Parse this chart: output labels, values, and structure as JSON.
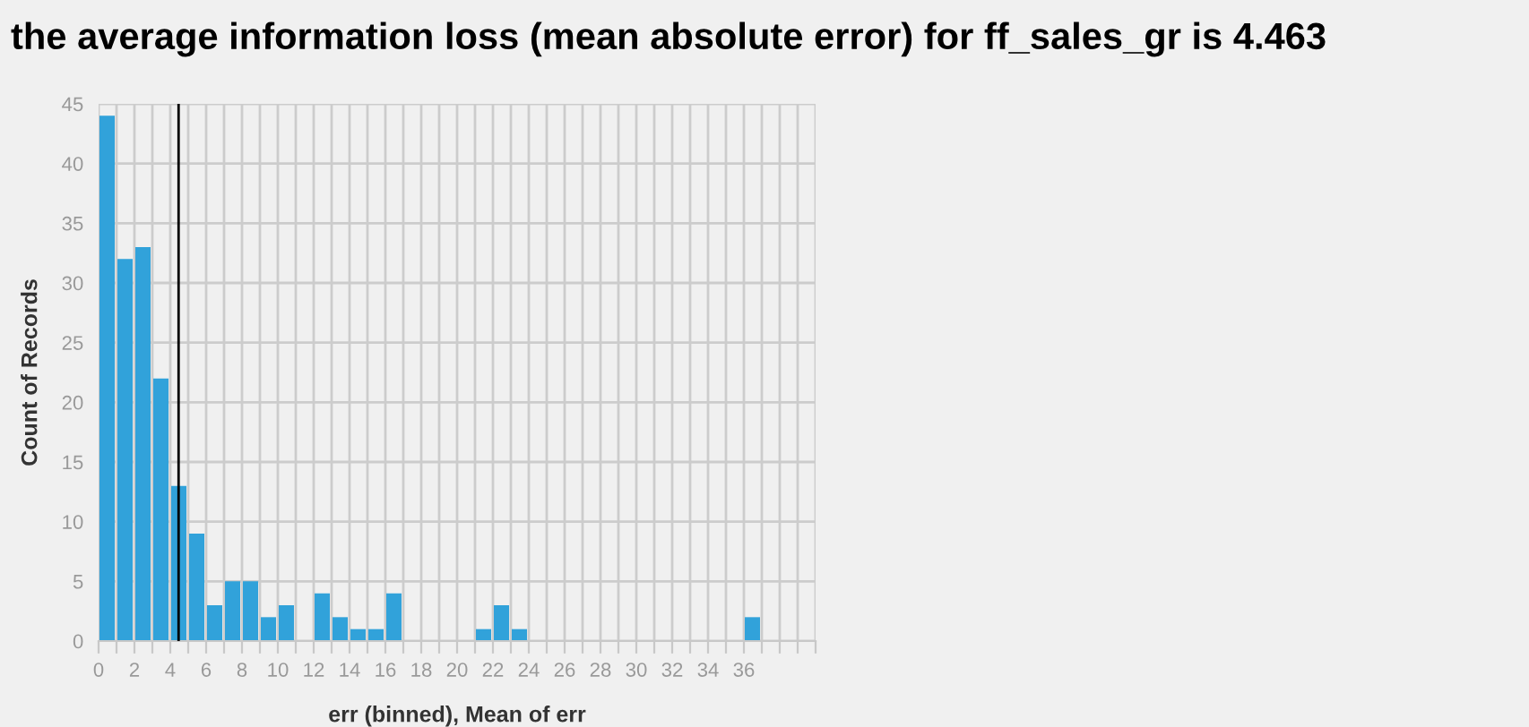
{
  "chart_data": {
    "type": "histogram",
    "title": "the average information loss (mean absolute error) for ff_sales_gr is 4.463",
    "xlabel": "err (binned), Mean of err",
    "ylabel": "Count of Records",
    "bins": [
      0,
      1,
      2,
      3,
      4,
      5,
      6,
      7,
      8,
      9,
      10,
      11,
      12,
      13,
      14,
      15,
      16,
      17,
      18,
      19,
      20,
      21,
      22,
      23,
      24,
      25,
      26,
      27,
      28,
      29,
      30,
      31,
      32,
      33,
      34,
      35,
      36,
      37
    ],
    "values": [
      44,
      32,
      33,
      22,
      13,
      9,
      3,
      5,
      5,
      2,
      3,
      0,
      4,
      2,
      1,
      1,
      4,
      0,
      0,
      0,
      0,
      1,
      3,
      1,
      0,
      0,
      0,
      0,
      0,
      0,
      0,
      0,
      0,
      0,
      0,
      0,
      2
    ],
    "color": "#31a2da",
    "xlim": [
      0,
      40
    ],
    "xticks": [
      0,
      {
        "value": 1,
        "label": null
      },
      2,
      {
        "value": 3,
        "label": null
      },
      4,
      {
        "value": 5,
        "label": null
      },
      6,
      {
        "value": 7,
        "label": null
      },
      8,
      {
        "value": 9,
        "label": null
      },
      10,
      {
        "value": 11,
        "label": null
      },
      12,
      {
        "value": 13,
        "label": null
      },
      14,
      {
        "value": 15,
        "label": null
      },
      16,
      {
        "value": 17,
        "label": null
      },
      18,
      {
        "value": 19,
        "label": null
      },
      20,
      {
        "value": 21,
        "label": null
      },
      22,
      {
        "value": 23,
        "label": null
      },
      24,
      {
        "value": 25,
        "label": null
      },
      26,
      {
        "value": 27,
        "label": null
      },
      28,
      {
        "value": 29,
        "label": null
      },
      30,
      {
        "value": 31,
        "label": null
      },
      32,
      {
        "value": 33,
        "label": null
      },
      34,
      {
        "value": 35,
        "label": null
      },
      36,
      {
        "value": 37,
        "label": null
      },
      {
        "value": 38,
        "label": null
      },
      {
        "value": 39,
        "label": null
      },
      {
        "value": 40,
        "label": null
      }
    ],
    "ylim": [
      0,
      45
    ],
    "yticks": [
      0,
      5,
      10,
      15,
      20,
      25,
      30,
      35,
      40,
      45
    ],
    "grid": true,
    "ref_lines": [
      {
        "axis": "x",
        "value": 4.463,
        "color": "#000000"
      }
    ]
  }
}
